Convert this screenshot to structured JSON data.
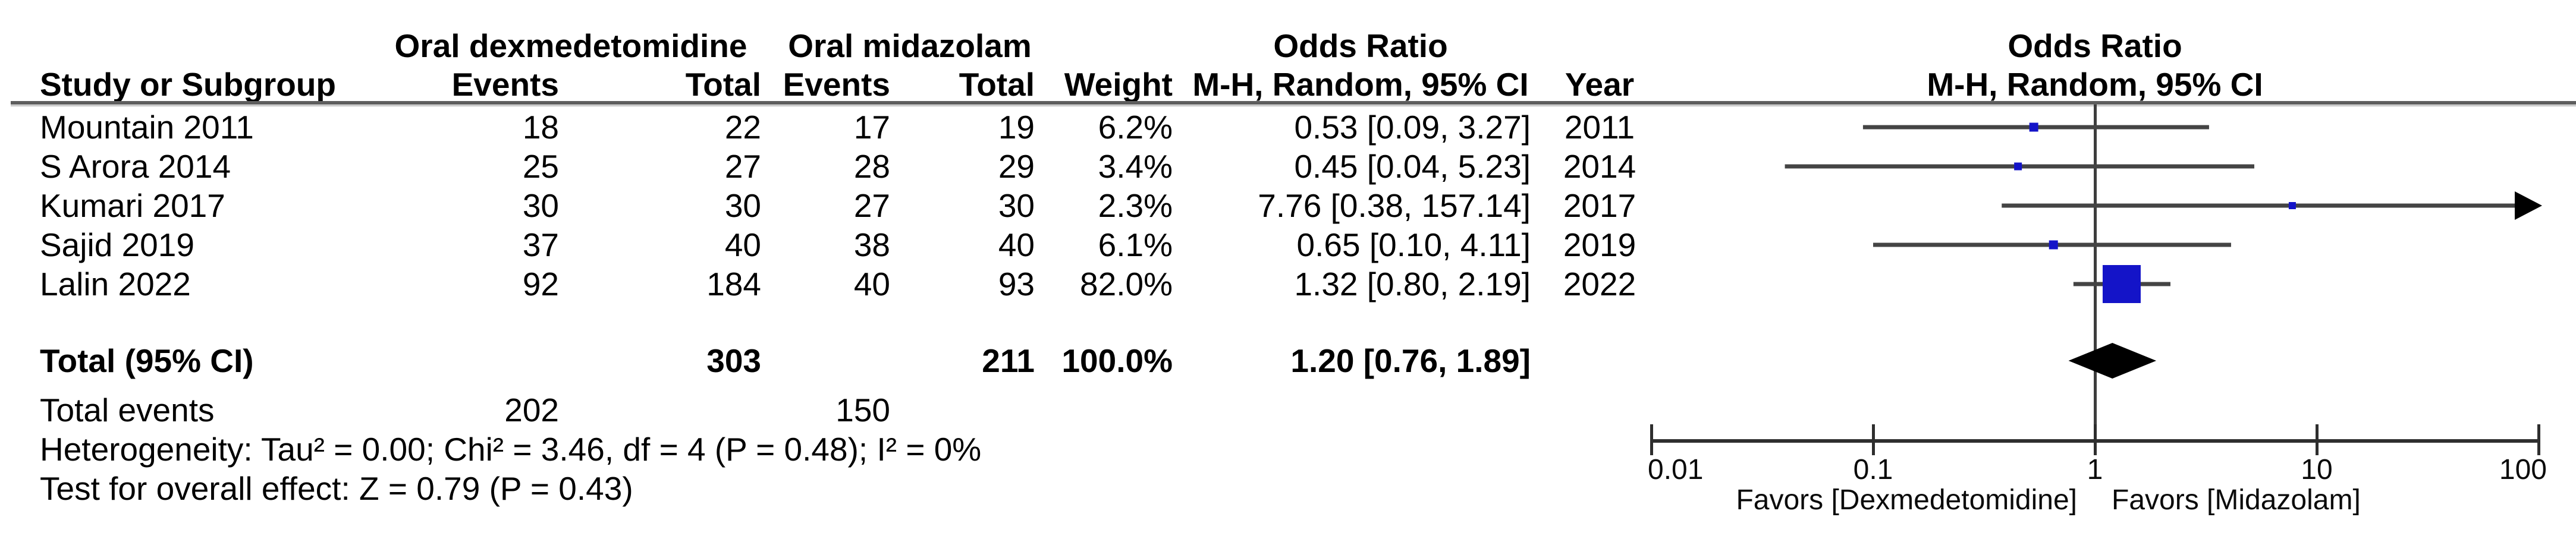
{
  "table": {
    "group1_label": "Oral dexmedetomidine",
    "group2_label": "Oral midazolam",
    "or_col_header": "Odds Ratio",
    "headers": {
      "study": "Study or Subgroup",
      "events1": "Events",
      "total1": "Total",
      "events2": "Events",
      "total2": "Total",
      "weight": "Weight",
      "method": "M-H, Random, 95% CI",
      "year": "Year"
    },
    "rows": [
      {
        "study": "Mountain 2011",
        "e1": "18",
        "t1": "22",
        "e2": "17",
        "t2": "19",
        "weight": "6.2%",
        "or_ci": "0.53 [0.09, 3.27]",
        "year": "2011"
      },
      {
        "study": "S Arora 2014",
        "e1": "25",
        "t1": "27",
        "e2": "28",
        "t2": "29",
        "weight": "3.4%",
        "or_ci": "0.45 [0.04, 5.23]",
        "year": "2014"
      },
      {
        "study": "Kumari 2017",
        "e1": "30",
        "t1": "30",
        "e2": "27",
        "t2": "30",
        "weight": "2.3%",
        "or_ci": "7.76 [0.38, 157.14]",
        "year": "2017"
      },
      {
        "study": "Sajid 2019",
        "e1": "37",
        "t1": "40",
        "e2": "38",
        "t2": "40",
        "weight": "6.1%",
        "or_ci": "0.65 [0.10, 4.11]",
        "year": "2019"
      },
      {
        "study": "Lalin 2022",
        "e1": "92",
        "t1": "184",
        "e2": "40",
        "t2": "93",
        "weight": "82.0%",
        "or_ci": "1.32 [0.80, 2.19]",
        "year": "2022"
      }
    ],
    "total": {
      "label": "Total (95% CI)",
      "t1": "303",
      "t2": "211",
      "weight": "100.0%",
      "or_ci": "1.20 [0.76, 1.89]"
    },
    "total_events": {
      "label": "Total events",
      "e1": "202",
      "e2": "150"
    },
    "heterogeneity": "Heterogeneity: Tau² = 0.00; Chi² = 3.46, df = 4 (P = 0.48); I² = 0%",
    "overall_effect": "Test for overall effect: Z = 0.79 (P = 0.43)"
  },
  "plot": {
    "header_line1": "Odds Ratio",
    "header_line2": "M-H, Random, 95% CI",
    "tick_labels": [
      "0.01",
      "0.1",
      "1",
      "10",
      "100"
    ],
    "favors_left": "Favors [Dexmedetomidine]",
    "favors_right": "Favors [Midazolam]",
    "marker_color": "#1414c8",
    "ci_line_color": "#444444",
    "axis_color": "#2e2e2e",
    "diamond_color": "#000000"
  },
  "chart_data": {
    "type": "forest",
    "title": "Odds Ratio",
    "method": "M-H, Random, 95% CI",
    "x_axis": {
      "scale": "log",
      "min": 0.01,
      "max": 100,
      "ticks": [
        0.01,
        0.1,
        1,
        10,
        100
      ],
      "null_line": 1
    },
    "favors": [
      "Favors [Dexmedetomidine]",
      "Favors [Midazolam]"
    ],
    "studies": [
      {
        "name": "Mountain 2011",
        "events_dex": 18,
        "total_dex": 22,
        "events_mid": 17,
        "total_mid": 19,
        "weight_pct": 6.2,
        "or": 0.53,
        "ci_low": 0.09,
        "ci_high": 3.27,
        "year": 2011
      },
      {
        "name": "S Arora 2014",
        "events_dex": 25,
        "total_dex": 27,
        "events_mid": 28,
        "total_mid": 29,
        "weight_pct": 3.4,
        "or": 0.45,
        "ci_low": 0.04,
        "ci_high": 5.23,
        "year": 2014
      },
      {
        "name": "Kumari 2017",
        "events_dex": 30,
        "total_dex": 30,
        "events_mid": 27,
        "total_mid": 30,
        "weight_pct": 2.3,
        "or": 7.76,
        "ci_low": 0.38,
        "ci_high": 157.14,
        "year": 2017
      },
      {
        "name": "Sajid 2019",
        "events_dex": 37,
        "total_dex": 40,
        "events_mid": 38,
        "total_mid": 40,
        "weight_pct": 6.1,
        "or": 0.65,
        "ci_low": 0.1,
        "ci_high": 4.11,
        "year": 2019
      },
      {
        "name": "Lalin 2022",
        "events_dex": 92,
        "total_dex": 184,
        "events_mid": 40,
        "total_mid": 93,
        "weight_pct": 82.0,
        "or": 1.32,
        "ci_low": 0.8,
        "ci_high": 2.19,
        "year": 2022
      }
    ],
    "total": {
      "total_dex": 303,
      "total_mid": 211,
      "events_dex": 202,
      "events_mid": 150,
      "weight_pct": 100.0,
      "or": 1.2,
      "ci_low": 0.76,
      "ci_high": 1.89
    },
    "heterogeneity": {
      "tau2": 0.0,
      "chi2": 3.46,
      "df": 4,
      "p": 0.48,
      "i2_pct": 0
    },
    "overall_effect": {
      "z": 0.79,
      "p": 0.43
    }
  }
}
